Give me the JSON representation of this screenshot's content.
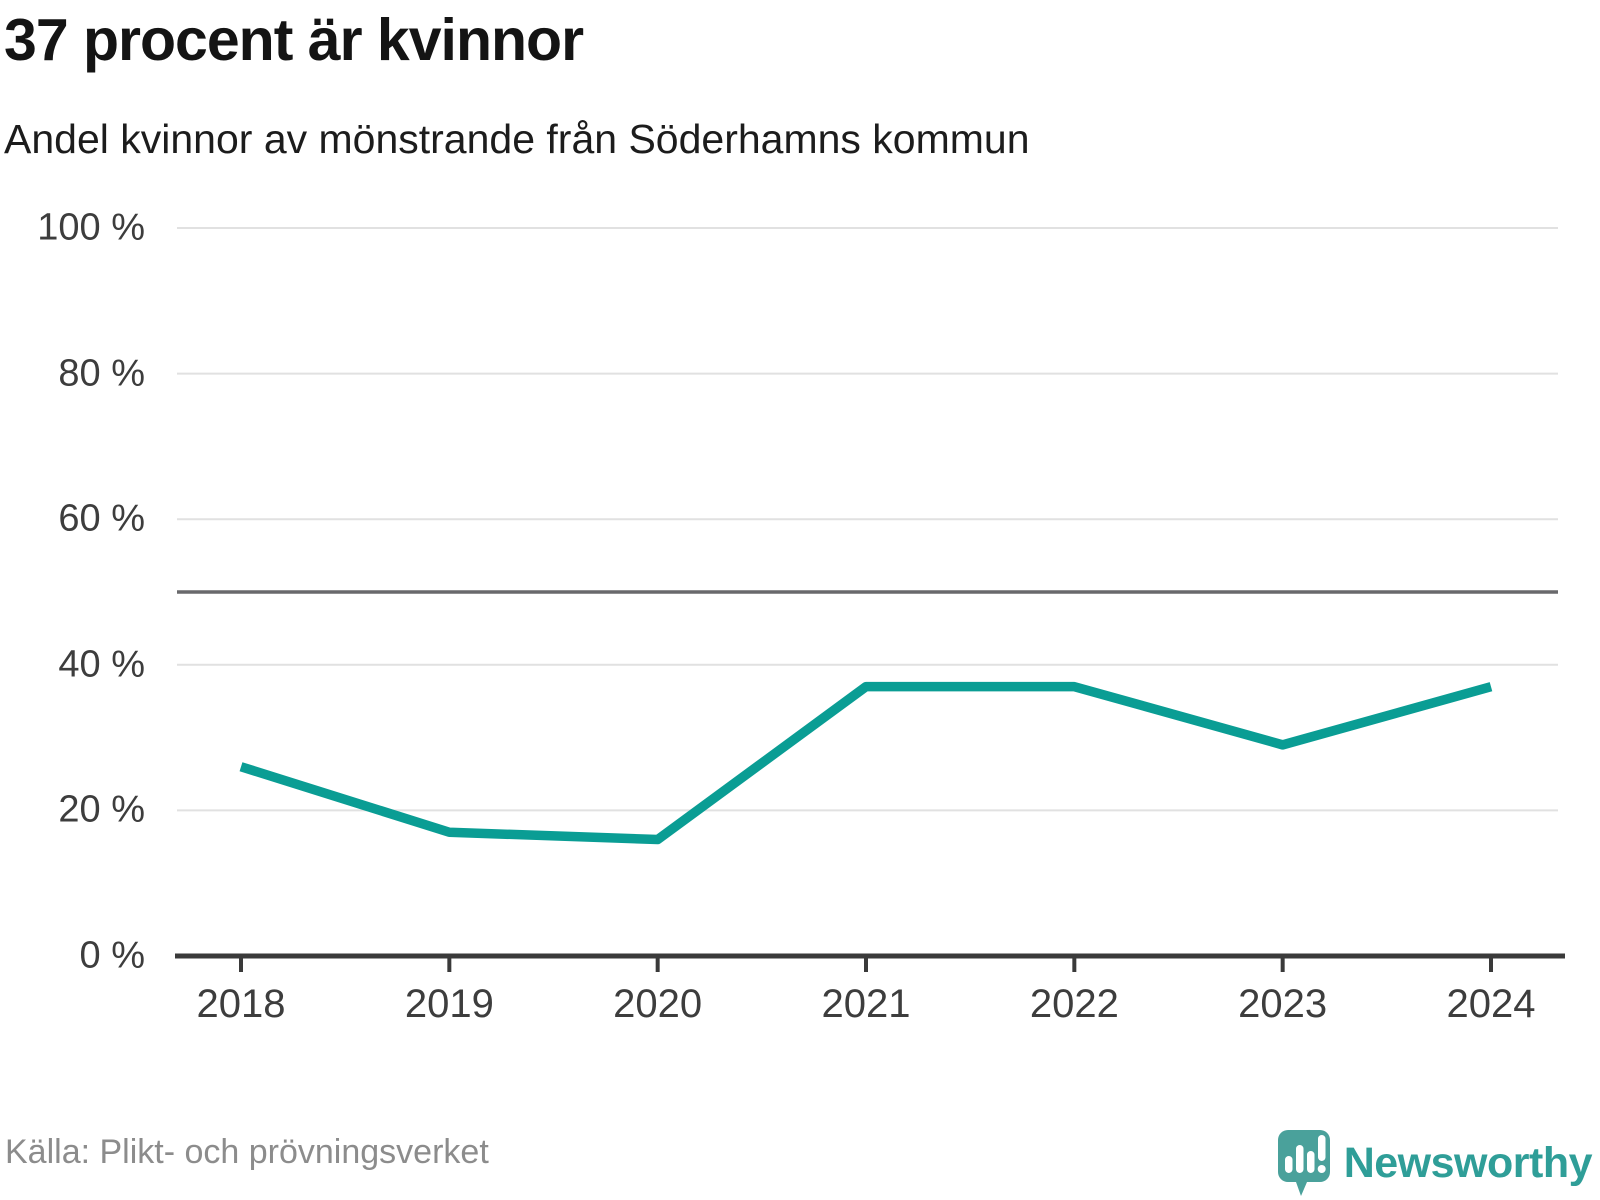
{
  "title": "37 procent är kvinnor",
  "subtitle": "Andel kvinnor av mönstrande från Söderhamns kommun",
  "source": "Källa: Plikt- och prövningsverket",
  "branding": {
    "name": "Newsworthy",
    "icon": "newsworthy-speech-bubble-barchart-icon"
  },
  "colors": {
    "line": "#0a9d94",
    "reference_line": "#69696c",
    "gridline": "#e1e1e1",
    "axis": "#3a3a3a",
    "tick_text": "#3d3d3d",
    "title_text": "#141414",
    "source_text": "#8c8c8c",
    "brand_teal": "#4aa19b",
    "brand_text": "#2f9e98"
  },
  "chart_data": {
    "type": "line",
    "title": "37 procent är kvinnor",
    "subtitle": "Andel kvinnor av mönstrande från Söderhamns kommun",
    "categories": [
      "2018",
      "2019",
      "2020",
      "2021",
      "2022",
      "2023",
      "2024"
    ],
    "series": [
      {
        "name": "Andel kvinnor av mönstrande från Söderhamns kommun",
        "values": [
          26,
          17,
          16,
          37,
          37,
          29,
          37
        ]
      }
    ],
    "unit": "%",
    "ylim": [
      0,
      100
    ],
    "yticks": [
      0,
      20,
      40,
      60,
      80,
      100
    ],
    "ytick_labels": [
      "0 %",
      "20 %",
      "40 %",
      "60 %",
      "80 %",
      "100 %"
    ],
    "reference_line_y": 50,
    "grid": true,
    "legend": false,
    "xlabel": "",
    "ylabel": ""
  }
}
